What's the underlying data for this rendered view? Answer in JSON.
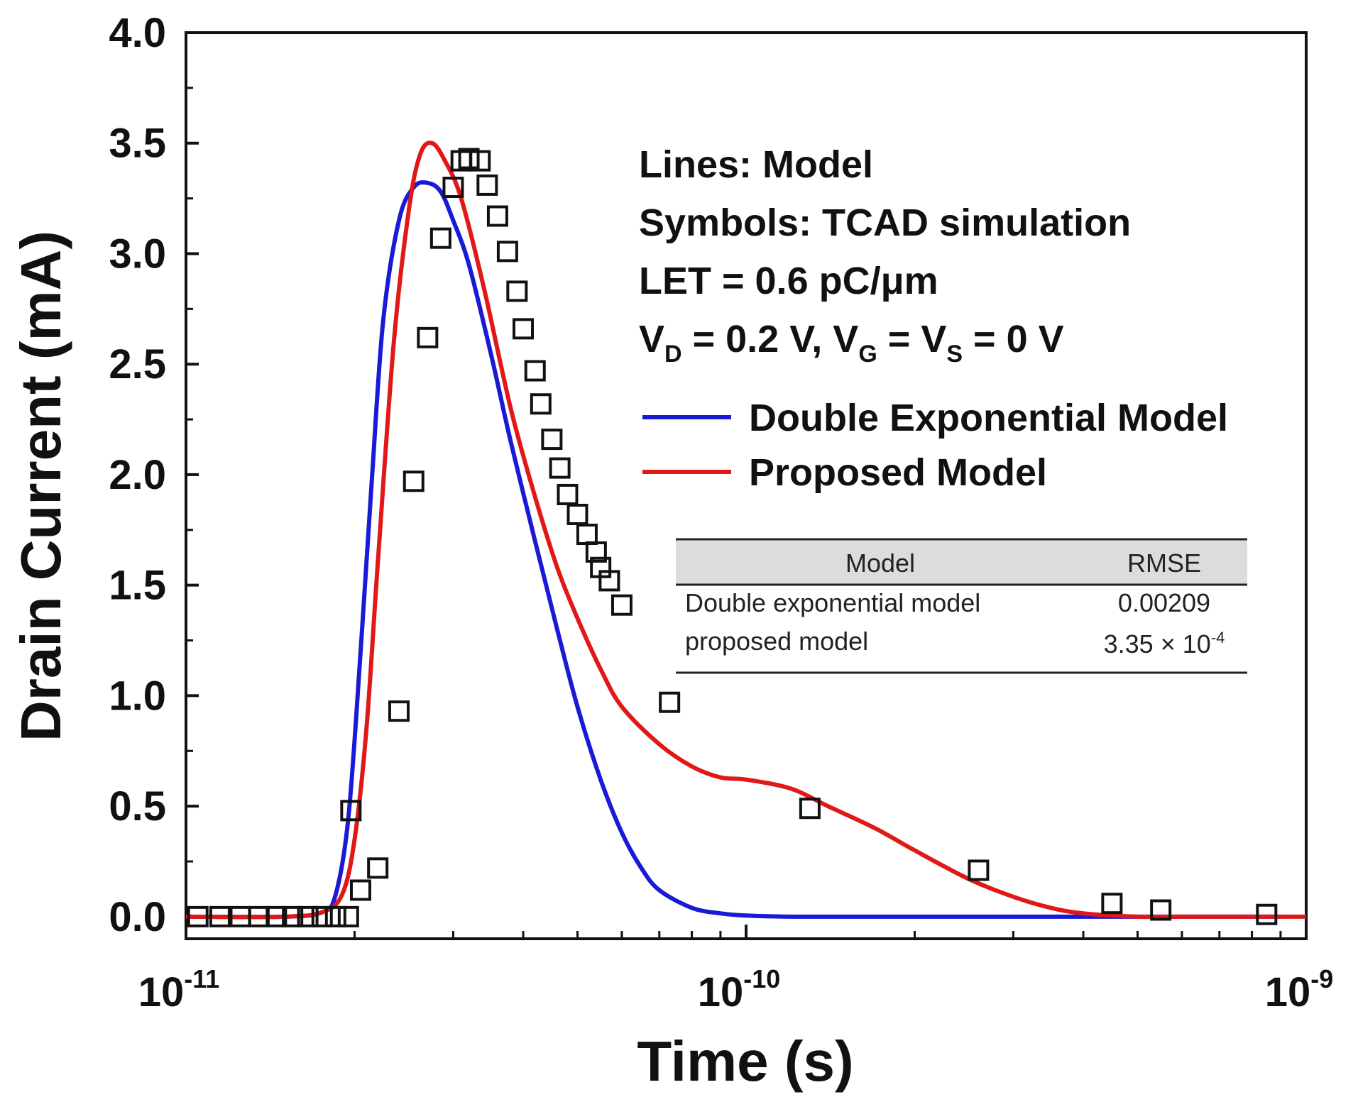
{
  "chart_data": {
    "type": "line",
    "xscale": "log",
    "xlim": [
      1e-11,
      1e-09
    ],
    "ylim": [
      -0.1,
      4.0
    ],
    "xlabel": "Time (s)",
    "ylabel": "Drain Current (mA)",
    "x_ticks": [
      {
        "value": 1e-11,
        "base": "10",
        "exp": "-11"
      },
      {
        "value": 1e-10,
        "base": "10",
        "exp": "-10"
      },
      {
        "value": 1e-09,
        "base": "10",
        "exp": "-9"
      }
    ],
    "y_ticks": [
      0.0,
      0.5,
      1.0,
      1.5,
      2.0,
      2.5,
      3.0,
      3.5,
      4.0
    ],
    "y_tick_labels": [
      "0.0",
      "0.5",
      "1.0",
      "1.5",
      "2.0",
      "2.5",
      "3.0",
      "3.5",
      "4.0"
    ],
    "annotations": {
      "line1": "Lines: Model",
      "line2": "Symbols: TCAD simulation",
      "line3": "LET = 0.6 pC/μm",
      "line4": {
        "vd_base": "V",
        "vd_sub": "D",
        "vd_rest": " = 0.2 V, ",
        "vg_base": "V",
        "vg_sub": "G",
        "vg_rest": " = ",
        "vs_base": "V",
        "vs_sub": "S",
        "vs_rest": " = 0 V"
      }
    },
    "series": [
      {
        "name": "Double Exponential Model",
        "color": "#1a1ad6",
        "x": [
          1e-11,
          1.5e-11,
          1.75e-11,
          1.85e-11,
          1.95e-11,
          2.05e-11,
          2.15e-11,
          2.25e-11,
          2.4e-11,
          2.55e-11,
          2.7e-11,
          2.85e-11,
          3e-11,
          3.2e-11,
          3.5e-11,
          3.8e-11,
          4.2e-11,
          4.6e-11,
          5e-11,
          5.5e-11,
          6e-11,
          6.5e-11,
          7e-11,
          8e-11,
          9e-11,
          1e-10,
          1.2e-10,
          1.5e-10,
          2e-10,
          3e-10,
          5e-10,
          9e-10
        ],
        "values": [
          0.0,
          0.0,
          0.02,
          0.1,
          0.45,
          1.2,
          2.0,
          2.7,
          3.15,
          3.3,
          3.32,
          3.28,
          3.15,
          2.95,
          2.55,
          2.15,
          1.7,
          1.3,
          0.95,
          0.62,
          0.38,
          0.22,
          0.12,
          0.04,
          0.015,
          0.005,
          0.0,
          0.0,
          0.0,
          0.0,
          0.0,
          0.0
        ]
      },
      {
        "name": "Proposed Model",
        "color": "#e01818",
        "x": [
          1e-11,
          1.5e-11,
          1.75e-11,
          1.9e-11,
          2e-11,
          2.1e-11,
          2.2e-11,
          2.35e-11,
          2.5e-11,
          2.62e-11,
          2.75e-11,
          2.9e-11,
          3.1e-11,
          3.4e-11,
          3.8e-11,
          4.2e-11,
          4.6e-11,
          5e-11,
          5.5e-11,
          6e-11,
          7e-11,
          8e-11,
          9e-11,
          1e-10,
          1.2e-10,
          1.4e-10,
          1.7e-10,
          2e-10,
          2.5e-10,
          3e-10,
          3.5e-10,
          4e-10,
          5e-10,
          6e-10,
          9e-10,
          1e-09
        ],
        "values": [
          0.0,
          0.0,
          0.02,
          0.1,
          0.35,
          0.85,
          1.6,
          2.6,
          3.2,
          3.45,
          3.5,
          3.42,
          3.25,
          2.85,
          2.3,
          1.9,
          1.58,
          1.35,
          1.12,
          0.95,
          0.78,
          0.68,
          0.63,
          0.62,
          0.58,
          0.5,
          0.4,
          0.3,
          0.17,
          0.09,
          0.04,
          0.015,
          0.0,
          0.0,
          0.0,
          0.0
        ]
      }
    ],
    "tcad": {
      "name": "TCAD simulation",
      "x": [
        1.05e-11,
        1.15e-11,
        1.25e-11,
        1.35e-11,
        1.45e-11,
        1.55e-11,
        1.65e-11,
        1.75e-11,
        1.85e-11,
        1.95e-11,
        1.97e-11,
        2.05e-11,
        2.2e-11,
        2.4e-11,
        2.55e-11,
        2.7e-11,
        2.85e-11,
        3e-11,
        3.1e-11,
        3.2e-11,
        3.35e-11,
        3.45e-11,
        3.6e-11,
        3.75e-11,
        3.9e-11,
        4e-11,
        4.2e-11,
        4.3e-11,
        4.5e-11,
        4.65e-11,
        4.8e-11,
        5e-11,
        5.2e-11,
        5.4e-11,
        5.5e-11,
        5.7e-11,
        6e-11,
        7.3e-11,
        1.3e-10,
        2.6e-10,
        4.5e-10,
        5.5e-10,
        8.5e-10
      ],
      "values": [
        0.0,
        0.0,
        0.0,
        0.0,
        0.0,
        0.0,
        0.0,
        0.0,
        0.0,
        0.0,
        0.48,
        0.12,
        0.22,
        0.93,
        1.97,
        2.62,
        3.07,
        3.3,
        3.42,
        3.43,
        3.42,
        3.31,
        3.17,
        3.01,
        2.83,
        2.66,
        2.47,
        2.32,
        2.16,
        2.03,
        1.91,
        1.82,
        1.73,
        1.65,
        1.58,
        1.52,
        1.41,
        0.97,
        0.49,
        0.21,
        0.06,
        0.03,
        0.01
      ]
    },
    "table": {
      "headers": [
        "Model",
        "RMSE"
      ],
      "rows": [
        {
          "model": "Double exponential model",
          "rmse": "0.00209"
        },
        {
          "model": "proposed model",
          "rmse_mantissa": "3.35 × 10",
          "rmse_exp": "-4"
        }
      ]
    }
  },
  "colors": {
    "blue": "#1a1ad6",
    "red": "#e01818",
    "table_header_bg": "#dcdcdc"
  }
}
